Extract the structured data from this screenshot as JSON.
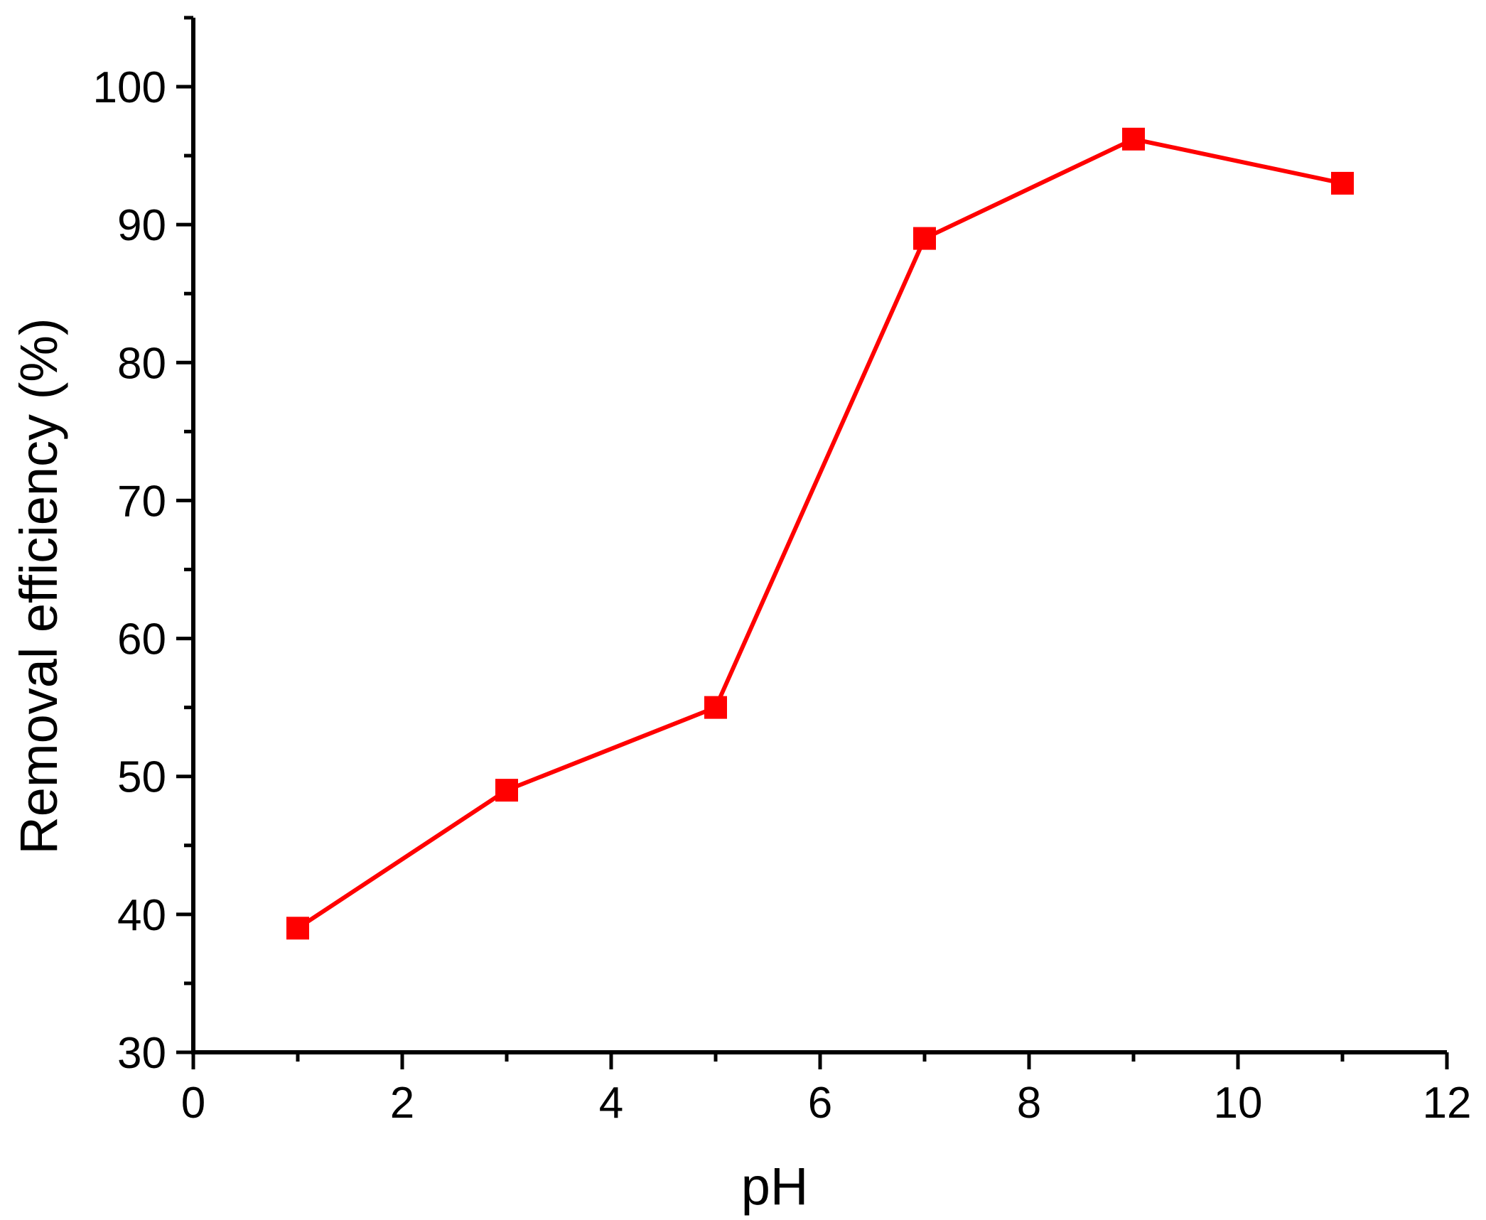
{
  "chart_data": {
    "type": "line",
    "title": "",
    "xlabel": "pH",
    "ylabel": "Removal efficiency (%)",
    "xlim": [
      0,
      12
    ],
    "ylim": [
      30,
      105
    ],
    "x_ticks": [
      0,
      2,
      4,
      6,
      8,
      10,
      12
    ],
    "y_ticks": [
      30,
      40,
      50,
      60,
      70,
      80,
      90,
      100
    ],
    "grid": false,
    "legend": "none",
    "series": [
      {
        "x": [
          1,
          3,
          5,
          7,
          9,
          11
        ],
        "values": [
          39,
          49,
          55,
          89,
          96.2,
          93
        ],
        "color": "#ff0000",
        "marker": "square"
      }
    ]
  }
}
